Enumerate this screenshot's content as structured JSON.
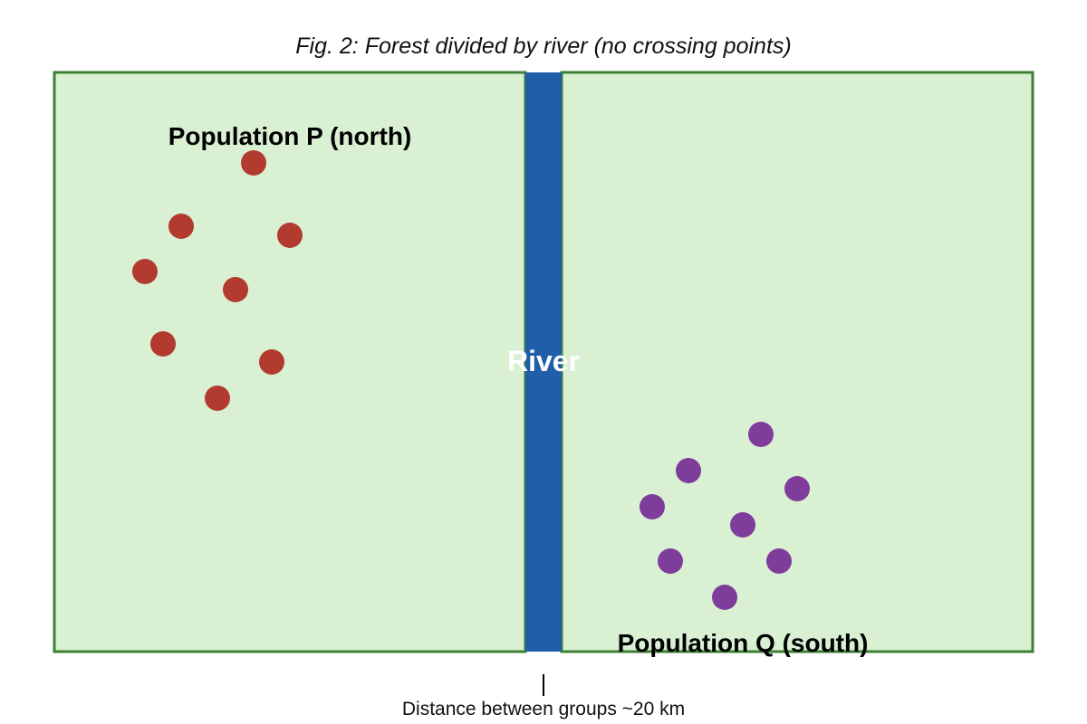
{
  "caption": "Fig. 2: Forest divided by river (no crossing points)",
  "river": {
    "label": "River",
    "color": "#215EA9"
  },
  "forest": {
    "fill": "#D9F0D3",
    "stroke": "#3D7F35"
  },
  "population_p": {
    "label": "Population P (north)",
    "color": "#B23A2E",
    "individual_count": 8
  },
  "population_q": {
    "label": "Population Q (south)",
    "color": "#7E3C9B",
    "individual_count": 8
  },
  "distance": {
    "label": "Distance between groups ~20 km"
  }
}
